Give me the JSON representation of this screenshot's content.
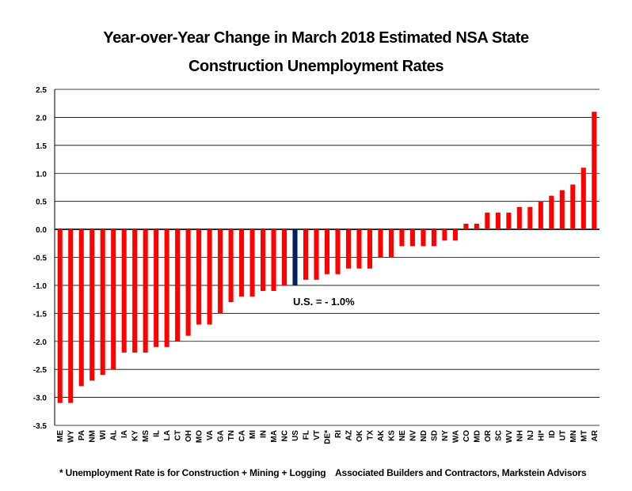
{
  "title_line1": "Year-over-Year Change in March 2018 Estimated NSA State",
  "title_line2": "Construction Unemployment Rates",
  "annotation": "U.S. = - 1.0%",
  "footnote_left": "* Unemployment Rate is for Construction + Mining + Logging",
  "footnote_right": "Associated Builders and Contractors, Markstein Advisors",
  "colors": {
    "bar": "#ff0000",
    "highlight": "#002060",
    "grid": "#000000"
  },
  "chart_data": {
    "type": "bar",
    "title": "Year-over-Year Change in March 2018 Estimated NSA State Construction Unemployment Rates",
    "xlabel": "",
    "ylabel": "",
    "ylim": [
      -3.5,
      2.5
    ],
    "yticks": [
      "2.5",
      "2.0",
      "1.5",
      "1.0",
      "0.5",
      "0.0",
      "-0.5",
      "-1.0",
      "-1.5",
      "-2.0",
      "-2.5",
      "-3.0",
      "-3.5"
    ],
    "grid": true,
    "highlight_category": "US",
    "categories": [
      "ME",
      "WY",
      "PA",
      "NM",
      "WI",
      "AL",
      "IA",
      "KY",
      "MS",
      "IL",
      "LA",
      "CT",
      "OH",
      "MO",
      "VA",
      "GA",
      "TN",
      "CA",
      "MI",
      "IN",
      "MA",
      "NC",
      "US",
      "FL",
      "VT",
      "DE*",
      "RI",
      "AZ",
      "OK",
      "TX",
      "AK",
      "KS",
      "NE",
      "NV",
      "ND",
      "SD",
      "NY",
      "WA",
      "CO",
      "MD",
      "OR",
      "SC",
      "WV",
      "NH",
      "NJ",
      "HI*",
      "ID",
      "UT",
      "MN",
      "MT",
      "AR"
    ],
    "values": [
      -3.1,
      -3.1,
      -2.8,
      -2.7,
      -2.6,
      -2.5,
      -2.2,
      -2.2,
      -2.2,
      -2.1,
      -2.1,
      -2.0,
      -1.9,
      -1.7,
      -1.7,
      -1.5,
      -1.3,
      -1.2,
      -1.2,
      -1.1,
      -1.1,
      -1.0,
      -1.0,
      -0.9,
      -0.9,
      -0.8,
      -0.8,
      -0.7,
      -0.7,
      -0.7,
      -0.5,
      -0.5,
      -0.3,
      -0.3,
      -0.3,
      -0.3,
      -0.2,
      -0.2,
      0.1,
      0.1,
      0.3,
      0.3,
      0.3,
      0.4,
      0.4,
      0.5,
      0.6,
      0.7,
      0.8,
      1.1,
      2.1
    ]
  }
}
